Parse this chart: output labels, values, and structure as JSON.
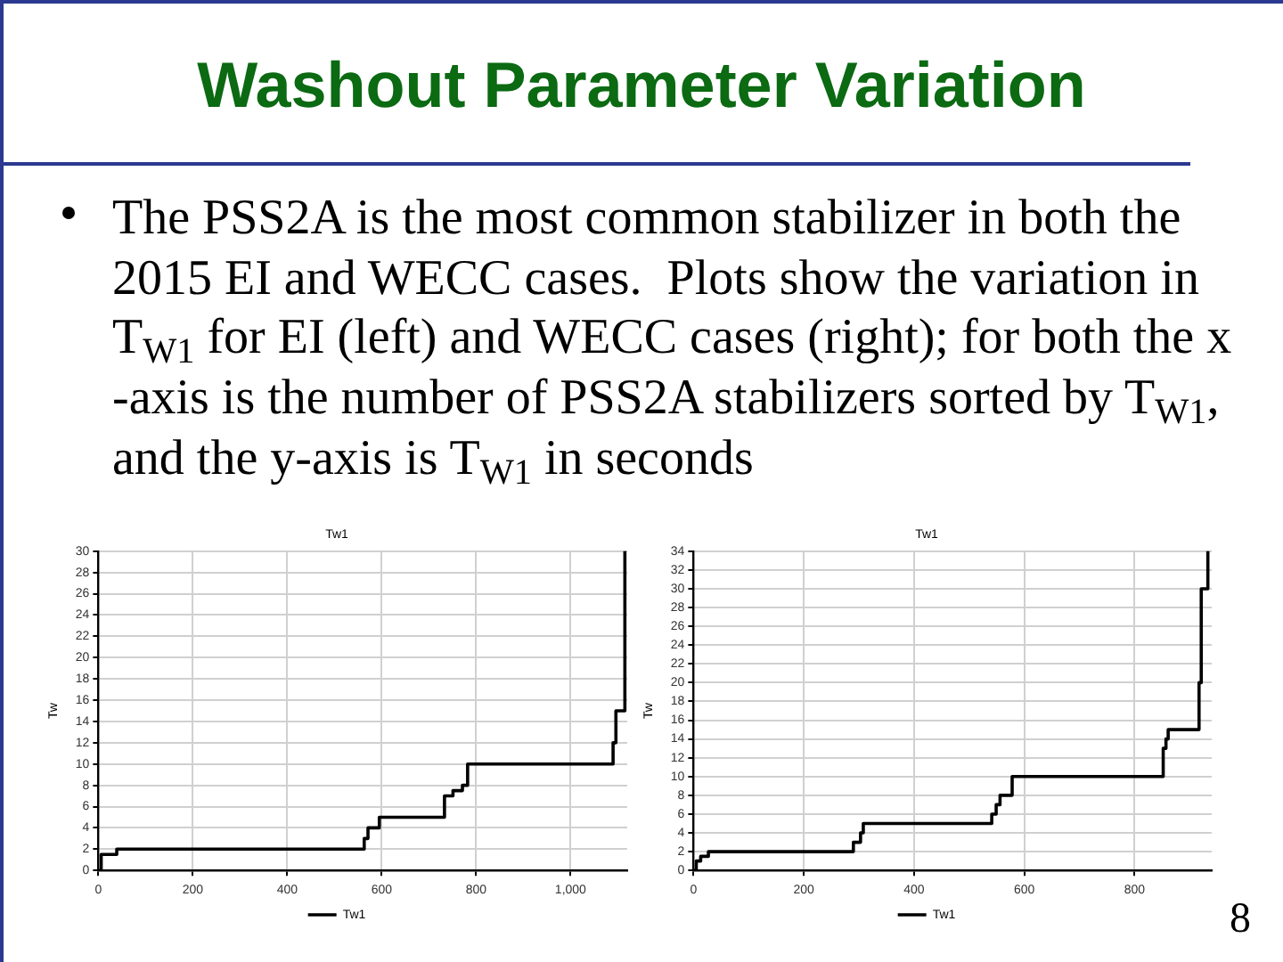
{
  "chart_data": [
    {
      "type": "other",
      "title": "Washout Parameter Variation",
      "annotations": [
        "The PSS2A is the most common stabilizer in both the 2015 EI and WECC cases.  Plots show the variation in T$_{W1}$ for EI (left) and WECC cases (right); for both the x -axis is the number of PSS2A stabilizers sorted by T$_{W1}$, and the y-axis is T$_{W1}$ in seconds",
        "8"
      ]
    },
    {
      "type": "step",
      "title": "Tw1",
      "ylabel": "Tw",
      "x": [
        0,
        6,
        39,
        563,
        571,
        595,
        733,
        751,
        771,
        782,
        1090,
        1096,
        1115
      ],
      "series": [
        {
          "name": "Tw1",
          "color": "#000000",
          "values": [
            0,
            1.5,
            2,
            3,
            4,
            5,
            7,
            7.5,
            8,
            10,
            12,
            15,
            30
          ]
        }
      ],
      "xlim": [
        0,
        1120
      ],
      "xticks": [
        0,
        200,
        400,
        600,
        800,
        {
          "value": 1000,
          "label": "1,000"
        }
      ],
      "ylim": [
        0,
        30
      ],
      "yticks": [
        0,
        2,
        4,
        6,
        8,
        10,
        12,
        14,
        16,
        18,
        20,
        22,
        24,
        26,
        28,
        30
      ],
      "grid": true,
      "legend": "bottom"
    },
    {
      "type": "step",
      "title": "Tw1",
      "ylabel": "Tw",
      "x": [
        0,
        5,
        13,
        27,
        290,
        303,
        308,
        541,
        549,
        556,
        578,
        852,
        857,
        861,
        917,
        921,
        933
      ],
      "series": [
        {
          "name": "Tw1",
          "color": "#000000",
          "values": [
            0,
            1,
            1.5,
            2,
            3,
            4,
            5,
            6,
            7,
            8,
            10,
            13,
            14,
            15,
            20,
            30,
            34
          ]
        }
      ],
      "xlim": [
        0,
        940
      ],
      "xticks": [
        0,
        200,
        400,
        600,
        800
      ],
      "ylim": [
        0,
        34
      ],
      "yticks": [
        0,
        2,
        4,
        6,
        8,
        10,
        12,
        14,
        16,
        18,
        20,
        22,
        24,
        26,
        28,
        30,
        32,
        34
      ],
      "grid": true,
      "legend": "bottom"
    }
  ]
}
